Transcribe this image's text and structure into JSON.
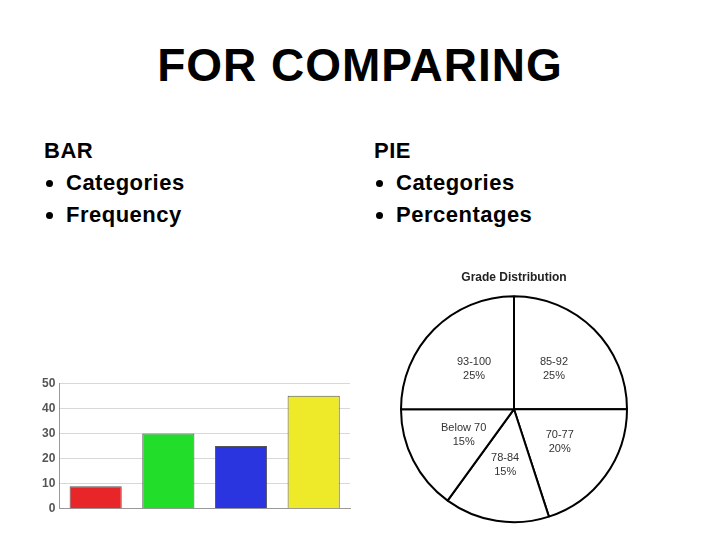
{
  "title": "FOR COMPARING",
  "columns": [
    {
      "heading": "BAR",
      "bullets": [
        "Categories",
        "Frequency"
      ]
    },
    {
      "heading": "PIE",
      "bullets": [
        "Categories",
        "Percentages"
      ]
    }
  ],
  "chart_data": [
    {
      "type": "bar",
      "categories": [
        null,
        null,
        null,
        null
      ],
      "values": [
        9,
        30,
        25,
        45
      ],
      "colors": [
        "#e8262a",
        "#22dd2a",
        "#2a35e0",
        "#eeea2a"
      ],
      "ylim": [
        0,
        50
      ],
      "yticks": [
        0,
        10,
        20,
        30,
        40,
        50
      ],
      "grid": true,
      "tick_labels": "y"
    },
    {
      "type": "pie",
      "title": "Grade Distribution",
      "categories": [
        "85-92",
        "70-77",
        "78-84",
        "Below 70",
        "93-100"
      ],
      "values": [
        25,
        20,
        15,
        15,
        25
      ],
      "value_labels": [
        "25%",
        "20%",
        "15%",
        "15%",
        "25%"
      ],
      "color": "#ffffff",
      "data_labels": true
    }
  ]
}
